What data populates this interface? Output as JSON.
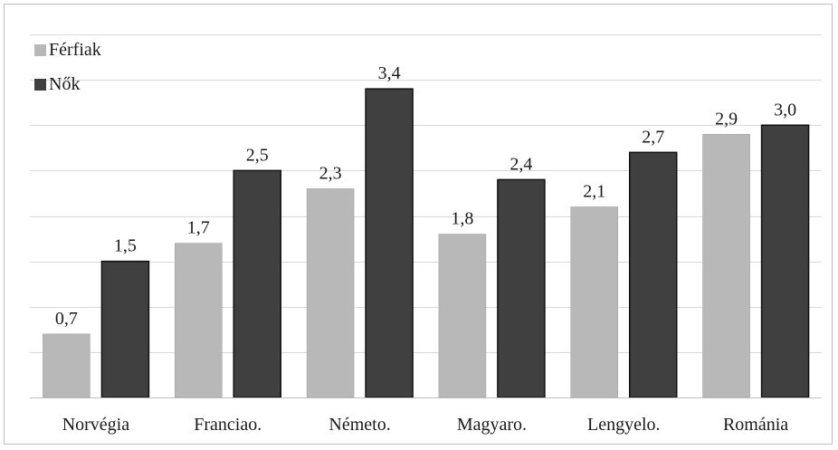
{
  "chart_data": {
    "type": "bar",
    "categories": [
      "Norvégia",
      "Franciao.",
      "Németo.",
      "Magyaro.",
      "Lengyelo.",
      "Románia"
    ],
    "series": [
      {
        "name": "Férfiak",
        "values": [
          0.7,
          1.7,
          2.3,
          1.8,
          2.1,
          2.9
        ],
        "labels": [
          "0,7",
          "1,7",
          "2,3",
          "1,8",
          "2,1",
          "2,9"
        ],
        "color": "#b8b8b8"
      },
      {
        "name": "Nők",
        "values": [
          1.5,
          2.5,
          3.4,
          2.4,
          2.7,
          3.0
        ],
        "labels": [
          "1,5",
          "2,5",
          "3,4",
          "2,4",
          "2,7",
          "3,0"
        ],
        "color": "#404040"
      }
    ],
    "ylim": [
      0,
      4
    ],
    "grid": true,
    "legend": "top-left",
    "title": "",
    "xlabel": "",
    "ylabel": ""
  }
}
